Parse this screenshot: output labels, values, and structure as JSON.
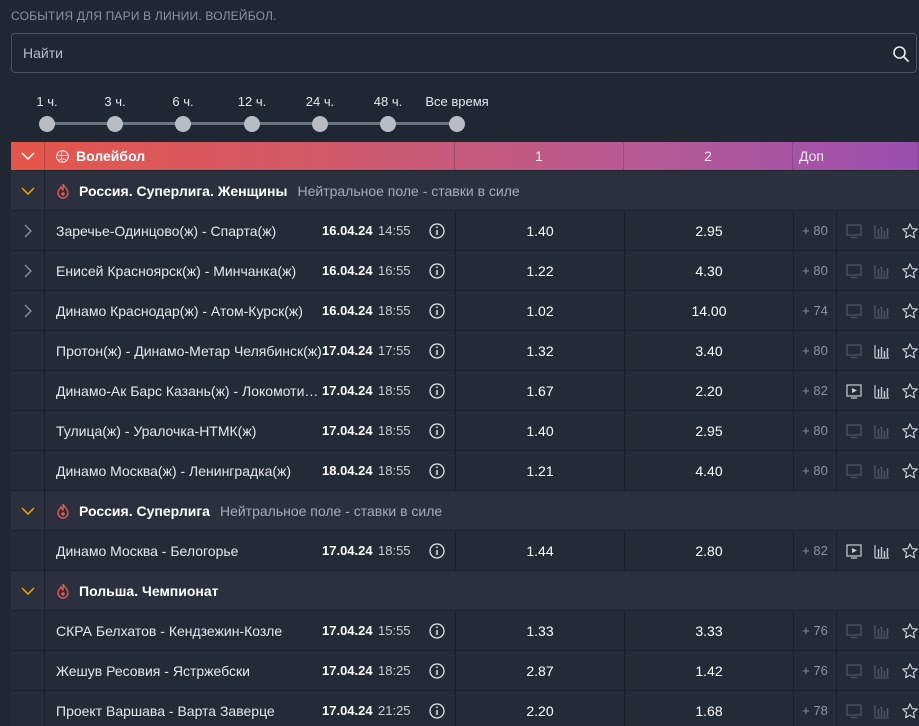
{
  "page_title": "СОБЫТИЯ ДЛЯ ПАРИ В ЛИНИИ. ВОЛЕЙБОЛ.",
  "search": {
    "placeholder": "Найти"
  },
  "time_filter": [
    "1 ч.",
    "3 ч.",
    "6 ч.",
    "12 ч.",
    "24 ч.",
    "48 ч.",
    "Все время"
  ],
  "sport_header": {
    "title": "Волейбол",
    "col1": "1",
    "col2": "2",
    "more": "Доп"
  },
  "leagues": [
    {
      "name": "Россия. Суперлига. Женщины",
      "note": "Нейтральное поле - ставки в силе",
      "events": [
        {
          "name": "Заречье-Одинцово(ж) - Спарта(ж)",
          "date": "16.04.24",
          "time": "14:55",
          "odd1": "1.40",
          "odd2": "2.95",
          "more": "+ 80",
          "expandable": true,
          "video": false
        },
        {
          "name": "Енисей Красноярск(ж) - Минчанка(ж)",
          "date": "16.04.24",
          "time": "16:55",
          "odd1": "1.22",
          "odd2": "4.30",
          "more": "+ 80",
          "expandable": true,
          "video": false
        },
        {
          "name": "Динамо Краснодар(ж) - Атом-Курск(ж)",
          "date": "16.04.24",
          "time": "18:55",
          "odd1": "1.02",
          "odd2": "14.00",
          "more": "+ 74",
          "expandable": true,
          "video": false
        },
        {
          "name": "Протон(ж) - Динамо-Метар Челябинск(ж)",
          "date": "17.04.24",
          "time": "17:55",
          "odd1": "1.32",
          "odd2": "3.40",
          "more": "+ 80",
          "expandable": false,
          "video": false
        },
        {
          "name": "Динамо-Ак Барс Казань(ж) - Локомотив Калининград(ж)",
          "date": "17.04.24",
          "time": "18:55",
          "odd1": "1.67",
          "odd2": "2.20",
          "more": "+ 82",
          "expandable": false,
          "video": true
        },
        {
          "name": "Тулица(ж) - Уралочка-НТМК(ж)",
          "date": "17.04.24",
          "time": "18:55",
          "odd1": "1.40",
          "odd2": "2.95",
          "more": "+ 80",
          "expandable": false,
          "video": false
        },
        {
          "name": "Динамо Москва(ж) - Ленинградка(ж)",
          "date": "18.04.24",
          "time": "18:55",
          "odd1": "1.21",
          "odd2": "4.40",
          "more": "+ 80",
          "expandable": false,
          "video": false
        }
      ]
    },
    {
      "name": "Россия. Суперлига",
      "note": "Нейтральное поле - ставки в силе",
      "events": [
        {
          "name": "Динамо Москва - Белогорье",
          "date": "17.04.24",
          "time": "18:55",
          "odd1": "1.44",
          "odd2": "2.80",
          "more": "+ 82",
          "expandable": false,
          "video": true
        }
      ]
    },
    {
      "name": "Польша. Чемпионат",
      "note": "",
      "events": [
        {
          "name": "СКРА Белхатов - Кендзежин-Козле",
          "date": "17.04.24",
          "time": "15:55",
          "odd1": "1.33",
          "odd2": "3.33",
          "more": "+ 76",
          "expandable": false,
          "video": false
        },
        {
          "name": "Жешув Ресовия - Ястржебски",
          "date": "17.04.24",
          "time": "18:25",
          "odd1": "2.87",
          "odd2": "1.42",
          "more": "+ 76",
          "expandable": false,
          "video": false
        },
        {
          "name": "Проект Варшава - Варта Заверце",
          "date": "17.04.24",
          "time": "21:25",
          "odd1": "2.20",
          "odd2": "1.68",
          "more": "+ 78",
          "expandable": false,
          "video": false
        }
      ]
    }
  ],
  "colors": {
    "background": "#1f2733",
    "accent_chevron": "#f2a100",
    "fire": "#e5564a"
  }
}
